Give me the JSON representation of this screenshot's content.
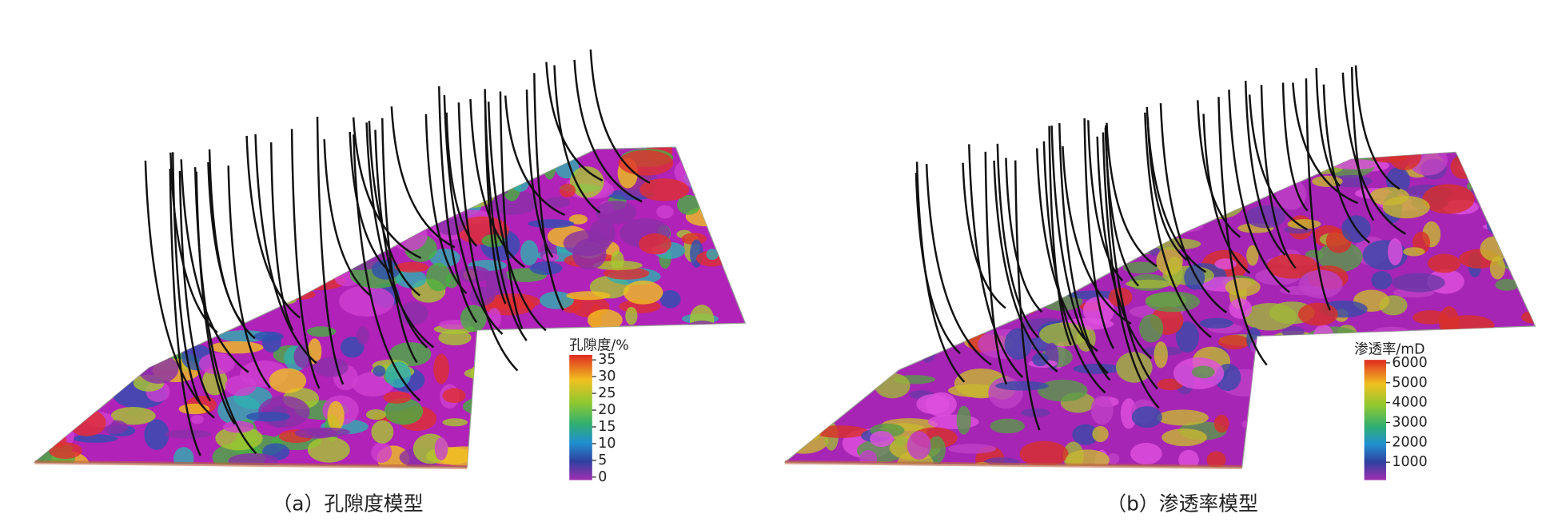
{
  "panels": [
    {
      "caption": "（a）孔隙度模型",
      "colorbar": {
        "title": "孔隙度/%",
        "range": [
          0,
          35
        ],
        "ticks": [
          0,
          5,
          10,
          15,
          20,
          25,
          30,
          35
        ]
      }
    },
    {
      "caption": "（b）渗透率模型",
      "colorbar": {
        "title": "渗透率/mD",
        "range": [
          0,
          6000
        ],
        "ticks": [
          1000,
          2000,
          3000,
          4000,
          5000,
          6000
        ]
      }
    }
  ]
}
